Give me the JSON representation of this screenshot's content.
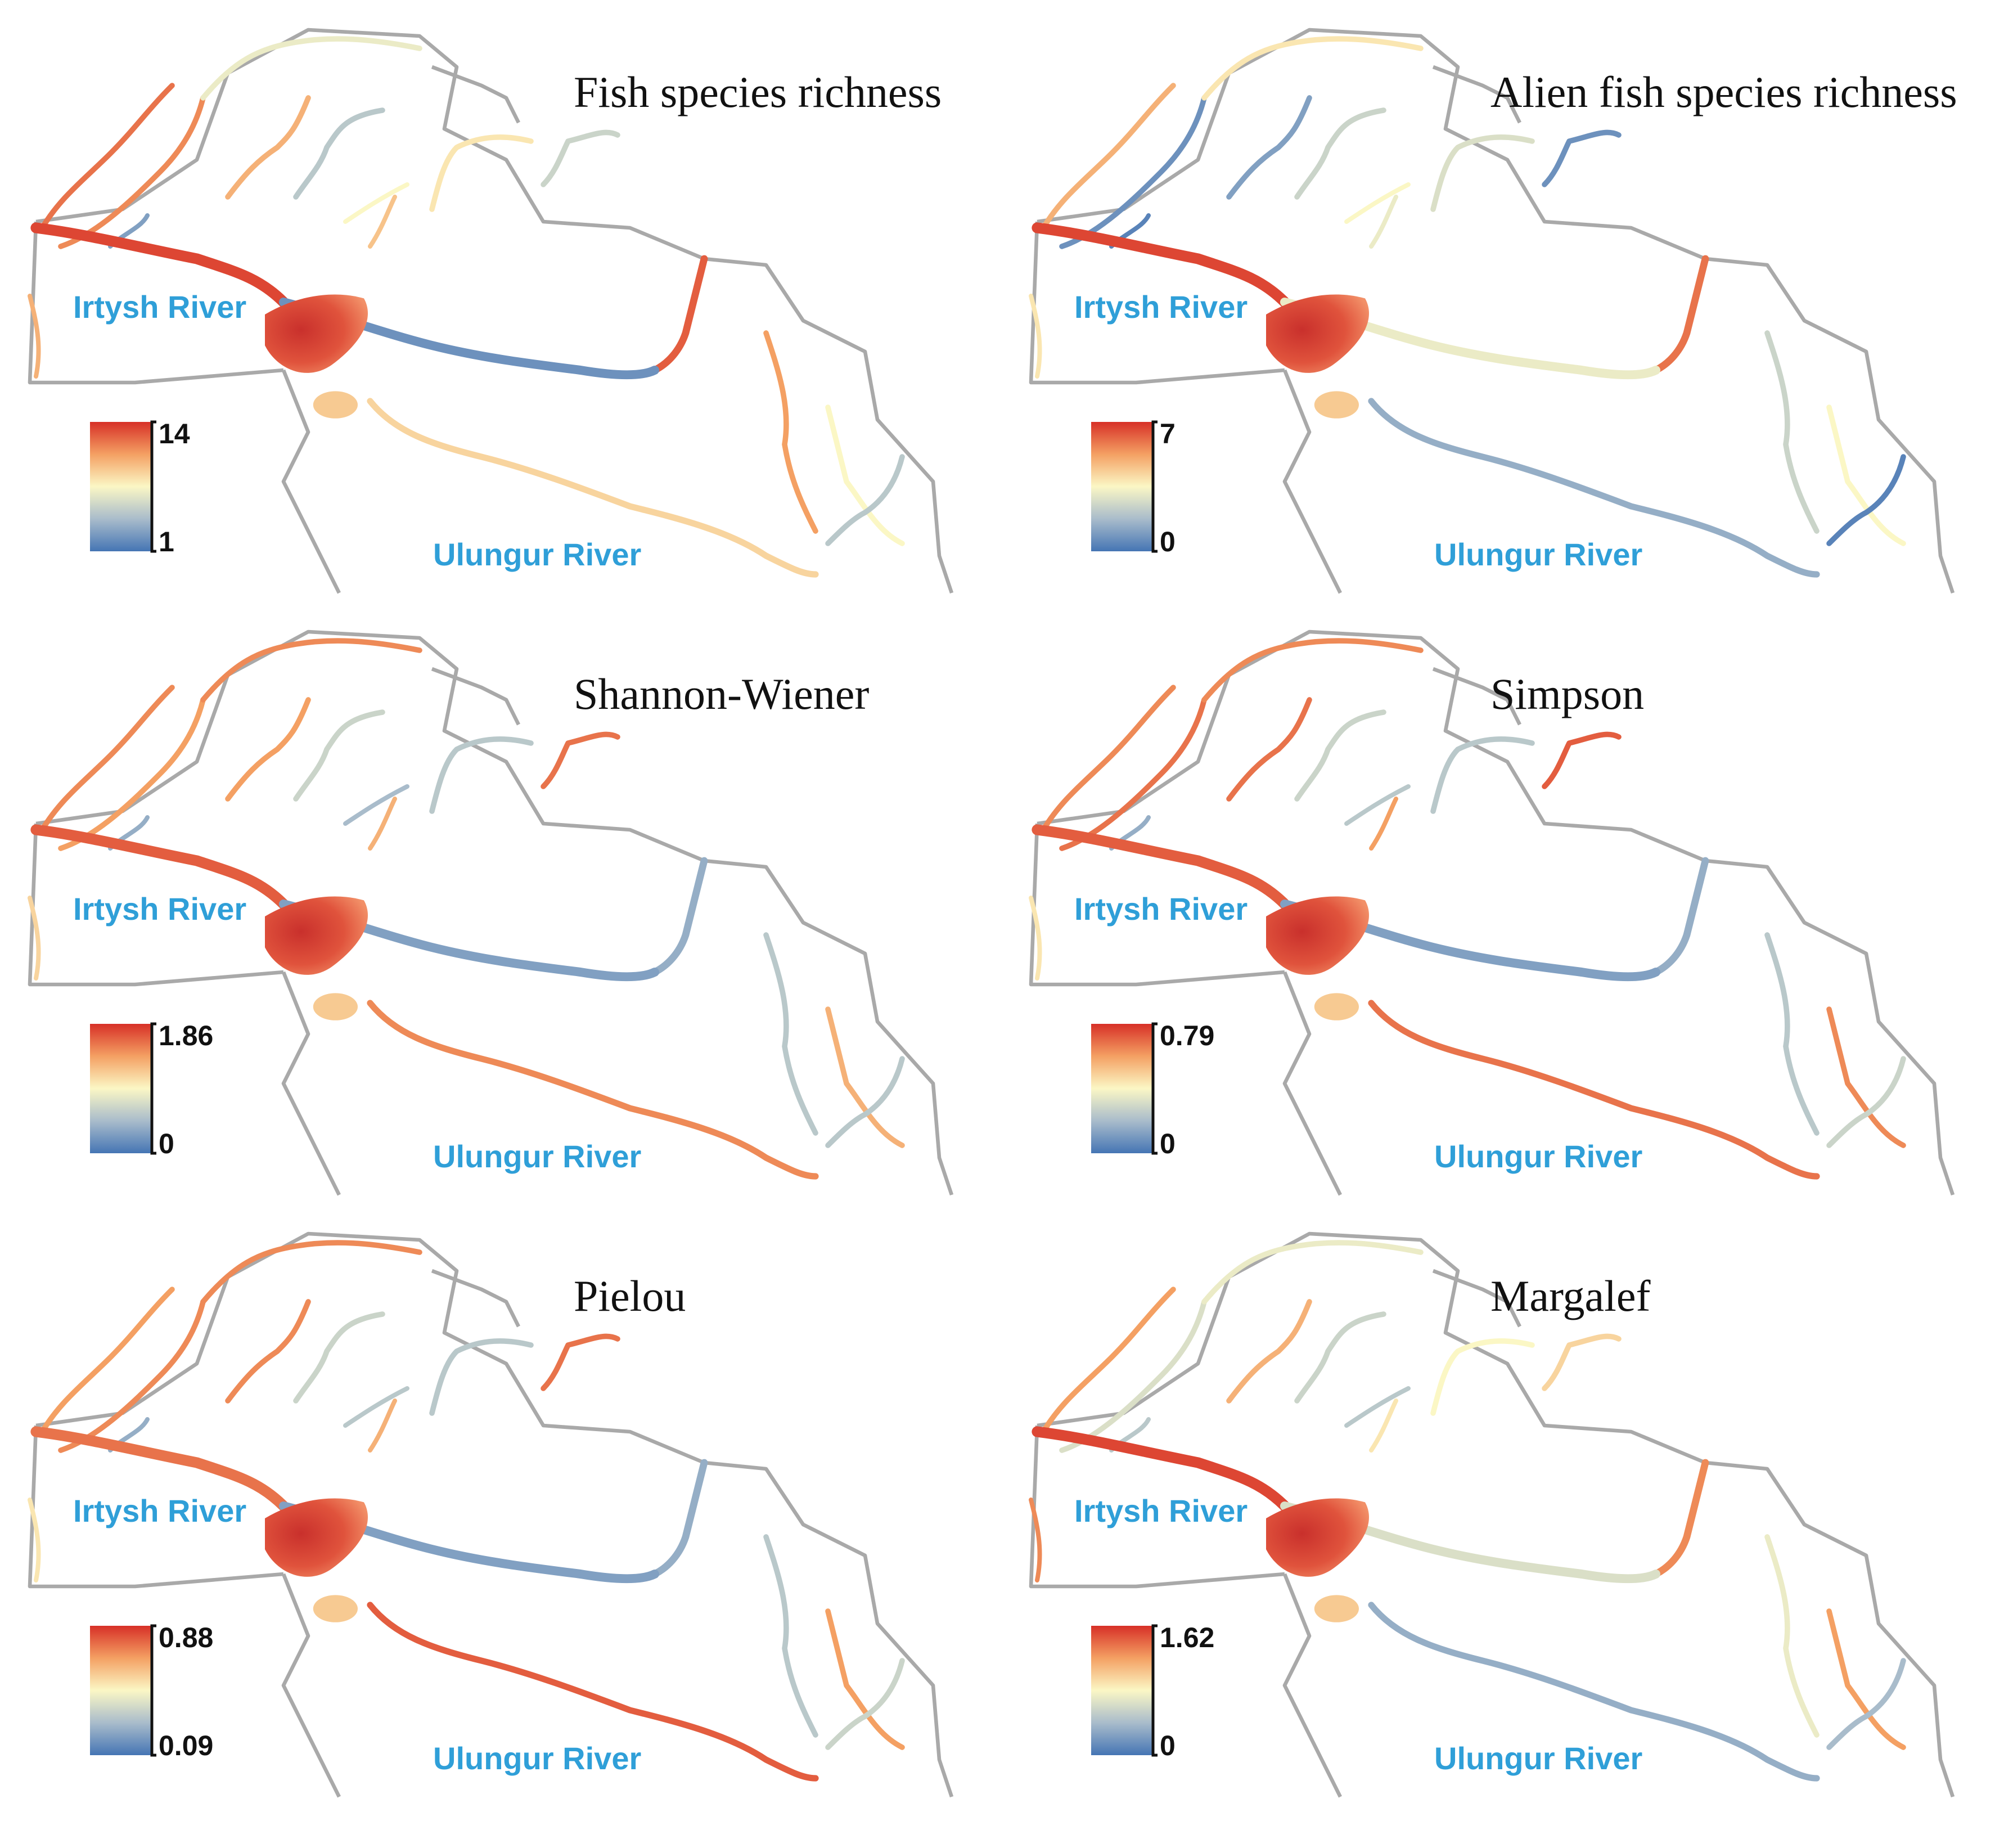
{
  "colors": {
    "scale_high": "#d73027",
    "scale_mid_high": "#f4a063",
    "scale_mid": "#fbf7c5",
    "scale_mid_low": "#a9bccb",
    "scale_low": "#4575b4",
    "border": "#a9a9a9",
    "river_label": "#2f9fd8"
  },
  "panels": [
    {
      "title": "Fish species richness",
      "irtysh_label": "Irtysh River",
      "ulungur_label": "Ulungur River",
      "legend": {
        "max": "14",
        "min": "1"
      },
      "segment_levels": [
        0.85,
        0.8,
        0.45,
        0.15,
        0.95,
        0.7,
        0.3,
        0.5,
        0.65,
        0.55,
        0.35,
        0.9,
        0.1,
        0.6,
        0.75,
        0.5,
        0.3,
        0.7
      ]
    },
    {
      "title": "Alien fish species richness",
      "irtysh_label": "Irtysh River",
      "ulungur_label": "Ulungur River",
      "legend": {
        "max": "7",
        "min": "0"
      },
      "segment_levels": [
        0.7,
        0.1,
        0.55,
        0.05,
        0.95,
        0.15,
        0.35,
        0.5,
        0.45,
        0.4,
        0.1,
        0.85,
        0.45,
        0.2,
        0.35,
        0.5,
        0.05,
        0.55
      ]
    },
    {
      "title": "Shannon-Wiener",
      "irtysh_label": "Irtysh River",
      "ulungur_label": "Ulungur River",
      "legend": {
        "max": "1.86",
        "min": "0"
      },
      "segment_levels": [
        0.8,
        0.75,
        0.8,
        0.2,
        0.9,
        0.75,
        0.35,
        0.25,
        0.7,
        0.3,
        0.85,
        0.2,
        0.15,
        0.8,
        0.3,
        0.7,
        0.3,
        0.6
      ]
    },
    {
      "title": "Simpson",
      "irtysh_label": "Irtysh River",
      "ulungur_label": "Ulungur River",
      "legend": {
        "max": "0.79",
        "min": "0"
      },
      "segment_levels": [
        0.8,
        0.85,
        0.8,
        0.2,
        0.9,
        0.85,
        0.35,
        0.3,
        0.75,
        0.3,
        0.9,
        0.2,
        0.15,
        0.85,
        0.3,
        0.8,
        0.35,
        0.55
      ]
    },
    {
      "title": "Pielou",
      "irtysh_label": "Irtysh River",
      "ulungur_label": "Ulungur River",
      "legend": {
        "max": "0.88",
        "min": "0.09"
      },
      "segment_levels": [
        0.75,
        0.8,
        0.8,
        0.2,
        0.85,
        0.8,
        0.35,
        0.3,
        0.7,
        0.3,
        0.85,
        0.2,
        0.15,
        0.9,
        0.3,
        0.75,
        0.35,
        0.55
      ]
    },
    {
      "title": "Margalef",
      "irtysh_label": "Irtysh River",
      "ulungur_label": "Ulungur River",
      "legend": {
        "max": "1.62",
        "min": "0"
      },
      "segment_levels": [
        0.75,
        0.4,
        0.45,
        0.3,
        0.95,
        0.7,
        0.35,
        0.3,
        0.55,
        0.5,
        0.6,
        0.8,
        0.4,
        0.2,
        0.45,
        0.75,
        0.25,
        0.8
      ]
    }
  ]
}
